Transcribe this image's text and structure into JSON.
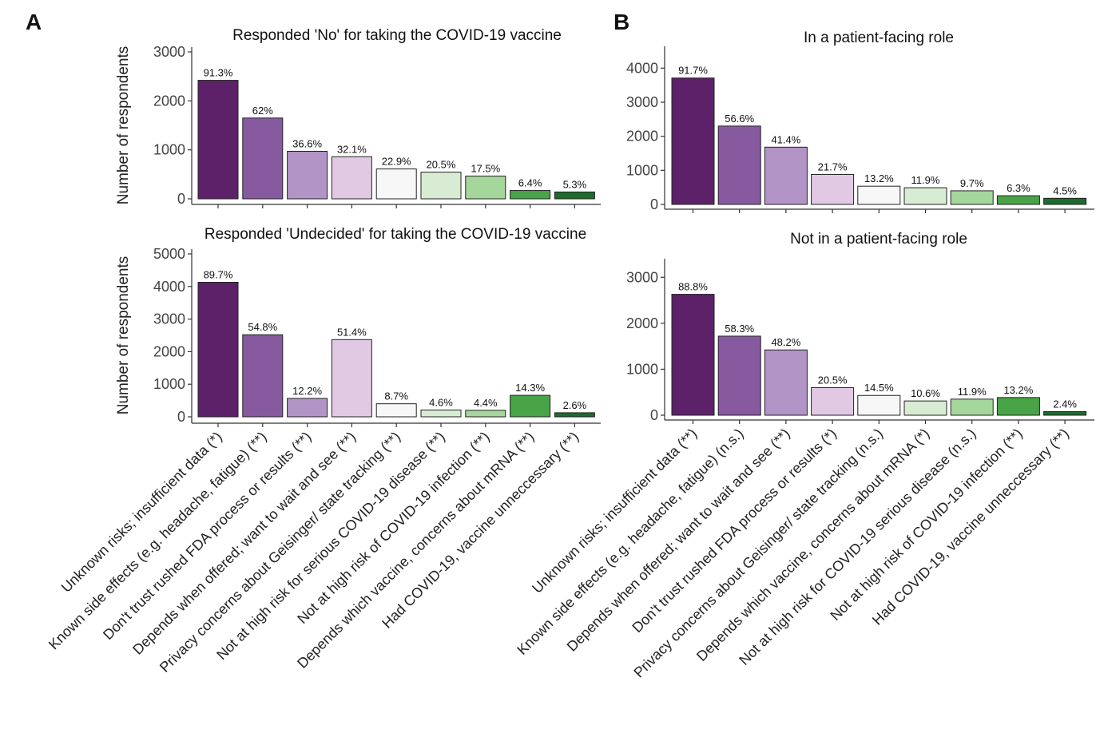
{
  "panels": {
    "a": {
      "letter": "A"
    },
    "b": {
      "letter": "B"
    }
  },
  "axis": {
    "ylabel": "Number of respondents"
  },
  "colors": {
    "scale": [
      "#5c2169",
      "#875aa0",
      "#b294c7",
      "#e1c9e4",
      "#f7f7f7",
      "#d8ecd3",
      "#a5d69b",
      "#48a447",
      "#1e6b2e"
    ]
  },
  "chart_data": [
    {
      "type": "bar",
      "panel": "A",
      "title": "Responded 'No' for taking the COVID-19 vaccine",
      "ylabel": "Number of respondents",
      "ylim": [
        0,
        3000
      ],
      "yticks": [
        "0",
        "1000",
        "2000",
        "3000"
      ],
      "ytick_values": [
        0,
        1000,
        2000,
        3000
      ],
      "values": [
        2420,
        1650,
        970,
        860,
        610,
        545,
        465,
        170,
        140
      ],
      "labels": [
        "91.3%",
        "62%",
        "36.6%",
        "32.1%",
        "22.9%",
        "20.5%",
        "17.5%",
        "6.4%",
        "5.3%"
      ],
      "categories": []
    },
    {
      "type": "bar",
      "panel": "A",
      "title": "Responded 'Undecided' for taking the COVID-19 vaccine",
      "ylabel": "Number of respondents",
      "ylim": [
        0,
        5000
      ],
      "yticks": [
        "0",
        "1000",
        "2000",
        "3000",
        "4000",
        "5000"
      ],
      "ytick_values": [
        0,
        1000,
        2000,
        3000,
        4000,
        5000
      ],
      "values": [
        4130,
        2520,
        565,
        2370,
        400,
        210,
        200,
        660,
        125
      ],
      "labels": [
        "89.7%",
        "54.8%",
        "12.2%",
        "51.4%",
        "8.7%",
        "4.6%",
        "4.4%",
        "14.3%",
        "2.6%"
      ],
      "categories": [
        "Unknown risks; insufficient data (*)",
        "Known side effects (e.g. headache, fatigue) (**)",
        "Don't trust rushed FDA process or results (**)",
        "Depends when offered; want to wait and see (**)",
        "Privacy concerns about Geisinger/ state tracking (**)",
        "Not at high risk for serious COVID-19 disease (**)",
        "Not at high risk of COVID-19 infection (**)",
        "Depends which vaccine, concerns about mRNA (**)",
        "Had COVID-19, vaccine unneccessary (**)"
      ]
    },
    {
      "type": "bar",
      "panel": "B",
      "title": "In a patient-facing role",
      "ylabel": "",
      "ylim": [
        0,
        4500
      ],
      "yticks": [
        "0",
        "1000",
        "2000",
        "3000",
        "4000"
      ],
      "ytick_values": [
        0,
        1000,
        2000,
        3000,
        4000
      ],
      "values": [
        3710,
        2300,
        1680,
        880,
        535,
        490,
        400,
        255,
        180
      ],
      "labels": [
        "91.7%",
        "56.6%",
        "41.4%",
        "21.7%",
        "13.2%",
        "11.9%",
        "9.7%",
        "6.3%",
        "4.5%"
      ],
      "categories": []
    },
    {
      "type": "bar",
      "panel": "B",
      "title": "Not in a patient-facing role",
      "ylabel": "",
      "ylim": [
        0,
        3300
      ],
      "yticks": [
        "0",
        "1000",
        "2000",
        "3000"
      ],
      "ytick_values": [
        0,
        1000,
        2000,
        3000
      ],
      "values": [
        2630,
        1720,
        1420,
        600,
        430,
        310,
        350,
        385,
        80
      ],
      "labels": [
        "88.8%",
        "58.3%",
        "48.2%",
        "20.5%",
        "14.5%",
        "10.6%",
        "11.9%",
        "13.2%",
        "2.4%"
      ],
      "categories": [
        "Unknown risks; insufficient data (**)",
        "Known side effects (e.g. headache, fatigue) (n.s.)",
        "Depends when offered; want to wait and see (**)",
        "Don't trust rushed FDA process or results (*)",
        "Privacy concerns about Geisinger/ state tracking (n.s.)",
        "Depends which vaccine, concerns about mRNA (*)",
        "Not at high risk for COVID-19 serious disease (n.s.)",
        "Not at high risk of COVID-19 infection (**)",
        "Had COVID-19, vaccine unneccessary (**)"
      ]
    }
  ]
}
